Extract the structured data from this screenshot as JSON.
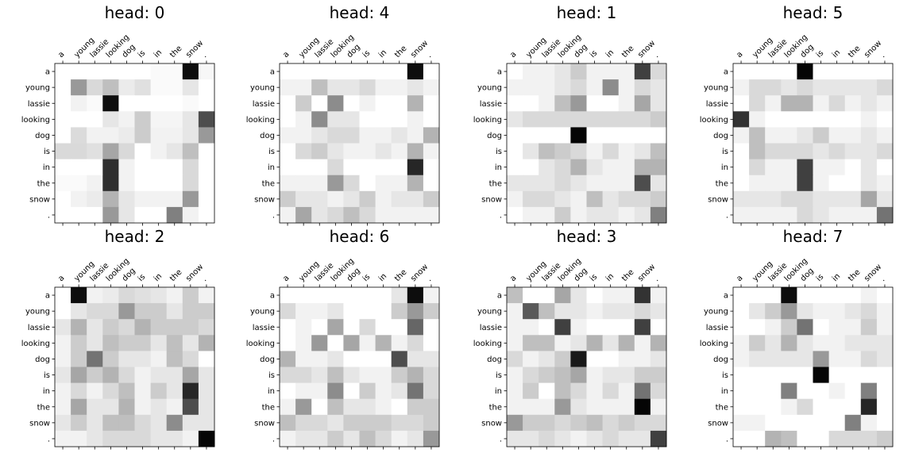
{
  "chart_data": [
    {
      "type": "heatmap",
      "title": "head: 0",
      "x_labels": [
        "a",
        "young",
        "lassie",
        "looking",
        "dog",
        "is",
        "in",
        "the",
        "snow",
        "."
      ],
      "y_labels": [
        "a",
        "young",
        "lassie",
        "looking",
        "dog",
        "is",
        "in",
        "the",
        "snow",
        "."
      ],
      "colormap": "greys",
      "values": [
        [
          0.0,
          0.0,
          0.0,
          0.0,
          0.0,
          0.0,
          0.02,
          0.02,
          0.95,
          0.03
        ],
        [
          0.0,
          0.4,
          0.15,
          0.25,
          0.08,
          0.12,
          0.02,
          0.02,
          0.1,
          0.0
        ],
        [
          0.0,
          0.05,
          0.02,
          0.95,
          0.0,
          0.0,
          0.0,
          0.0,
          0.02,
          0.0
        ],
        [
          0.0,
          0.0,
          0.0,
          0.1,
          0.05,
          0.2,
          0.04,
          0.04,
          0.1,
          0.7
        ],
        [
          0.0,
          0.14,
          0.05,
          0.05,
          0.08,
          0.2,
          0.05,
          0.05,
          0.1,
          0.4
        ],
        [
          0.15,
          0.15,
          0.12,
          0.35,
          0.15,
          0.0,
          0.05,
          0.1,
          0.25,
          0.0
        ],
        [
          0.0,
          0.0,
          0.0,
          0.82,
          0.05,
          0.0,
          0.0,
          0.0,
          0.15,
          0.0
        ],
        [
          0.02,
          0.02,
          0.05,
          0.82,
          0.05,
          0.0,
          0.0,
          0.0,
          0.15,
          0.0
        ],
        [
          0.0,
          0.05,
          0.08,
          0.3,
          0.1,
          0.05,
          0.05,
          0.05,
          0.4,
          0.0
        ],
        [
          0.0,
          0.0,
          0.0,
          0.4,
          0.1,
          0.0,
          0.0,
          0.5,
          0.05,
          0.0
        ]
      ]
    },
    {
      "type": "heatmap",
      "title": "head: 2",
      "x_labels": [
        "a",
        "young",
        "lassie",
        "looking",
        "dog",
        "is",
        "in",
        "the",
        "snow",
        "."
      ],
      "y_labels": [
        "a",
        "young",
        "lassie",
        "looking",
        "dog",
        "is",
        "in",
        "the",
        "snow",
        "."
      ],
      "colormap": "greys",
      "values": [
        [
          0.0,
          0.95,
          0.05,
          0.08,
          0.15,
          0.12,
          0.1,
          0.05,
          0.2,
          0.05
        ],
        [
          0.0,
          0.1,
          0.15,
          0.15,
          0.4,
          0.2,
          0.2,
          0.1,
          0.2,
          0.2
        ],
        [
          0.1,
          0.3,
          0.1,
          0.2,
          0.15,
          0.3,
          0.2,
          0.2,
          0.2,
          0.15
        ],
        [
          0.05,
          0.2,
          0.1,
          0.25,
          0.2,
          0.2,
          0.1,
          0.25,
          0.1,
          0.3
        ],
        [
          0.05,
          0.2,
          0.55,
          0.2,
          0.1,
          0.1,
          0.05,
          0.25,
          0.15,
          0.0
        ],
        [
          0.1,
          0.35,
          0.2,
          0.3,
          0.15,
          0.05,
          0.1,
          0.1,
          0.35,
          0.1
        ],
        [
          0.05,
          0.15,
          0.05,
          0.15,
          0.25,
          0.05,
          0.2,
          0.1,
          0.85,
          0.1
        ],
        [
          0.05,
          0.35,
          0.1,
          0.1,
          0.3,
          0.05,
          0.1,
          0.05,
          0.7,
          0.1
        ],
        [
          0.1,
          0.2,
          0.1,
          0.25,
          0.25,
          0.15,
          0.1,
          0.45,
          0.1,
          0.1
        ],
        [
          0.05,
          0.05,
          0.1,
          0.15,
          0.15,
          0.15,
          0.1,
          0.1,
          0.05,
          0.98
        ]
      ]
    },
    {
      "type": "heatmap",
      "title": "head: 4",
      "x_labels": [
        "a",
        "young",
        "lassie",
        "looking",
        "dog",
        "is",
        "in",
        "the",
        "snow",
        "."
      ],
      "y_labels": [
        "a",
        "young",
        "lassie",
        "looking",
        "dog",
        "is",
        "in",
        "the",
        "snow",
        "."
      ],
      "colormap": "greys",
      "values": [
        [
          0.0,
          0.0,
          0.0,
          0.0,
          0.0,
          0.0,
          0.0,
          0.0,
          0.95,
          0.0
        ],
        [
          0.05,
          0.05,
          0.25,
          0.1,
          0.1,
          0.15,
          0.05,
          0.05,
          0.1,
          0.05
        ],
        [
          0.0,
          0.2,
          0.0,
          0.45,
          0.0,
          0.05,
          0.0,
          0.0,
          0.3,
          0.0
        ],
        [
          0.0,
          0.05,
          0.45,
          0.1,
          0.1,
          0.0,
          0.0,
          0.0,
          0.05,
          0.0
        ],
        [
          0.05,
          0.05,
          0.1,
          0.15,
          0.15,
          0.05,
          0.05,
          0.1,
          0.05,
          0.3
        ],
        [
          0.0,
          0.15,
          0.2,
          0.1,
          0.05,
          0.05,
          0.1,
          0.05,
          0.3,
          0.05
        ],
        [
          0.0,
          0.0,
          0.0,
          0.15,
          0.0,
          0.0,
          0.0,
          0.0,
          0.85,
          0.0
        ],
        [
          0.05,
          0.05,
          0.05,
          0.4,
          0.15,
          0.0,
          0.05,
          0.05,
          0.3,
          0.0
        ],
        [
          0.2,
          0.1,
          0.1,
          0.05,
          0.1,
          0.2,
          0.05,
          0.1,
          0.1,
          0.2
        ],
        [
          0.05,
          0.35,
          0.1,
          0.15,
          0.25,
          0.15,
          0.05,
          0.05,
          0.05,
          0.05
        ]
      ]
    },
    {
      "type": "heatmap",
      "title": "head: 6",
      "x_labels": [
        "a",
        "young",
        "lassie",
        "looking",
        "dog",
        "is",
        "in",
        "the",
        "snow",
        "."
      ],
      "y_labels": [
        "a",
        "young",
        "lassie",
        "looking",
        "dog",
        "is",
        "in",
        "the",
        "snow",
        "."
      ],
      "colormap": "greys",
      "values": [
        [
          0.0,
          0.0,
          0.0,
          0.0,
          0.0,
          0.0,
          0.0,
          0.1,
          0.95,
          0.05
        ],
        [
          0.15,
          0.05,
          0.05,
          0.1,
          0.0,
          0.0,
          0.0,
          0.2,
          0.4,
          0.2
        ],
        [
          0.0,
          0.05,
          0.0,
          0.35,
          0.0,
          0.15,
          0.0,
          0.0,
          0.6,
          0.0
        ],
        [
          0.0,
          0.05,
          0.4,
          0.0,
          0.35,
          0.05,
          0.3,
          0.05,
          0.15,
          0.0
        ],
        [
          0.3,
          0.05,
          0.05,
          0.1,
          0.0,
          0.0,
          0.0,
          0.7,
          0.1,
          0.1
        ],
        [
          0.15,
          0.15,
          0.1,
          0.25,
          0.1,
          0.05,
          0.05,
          0.2,
          0.3,
          0.15
        ],
        [
          0.0,
          0.05,
          0.05,
          0.45,
          0.0,
          0.2,
          0.05,
          0.1,
          0.55,
          0.15
        ],
        [
          0.05,
          0.4,
          0.0,
          0.25,
          0.1,
          0.1,
          0.05,
          0.0,
          0.2,
          0.2
        ],
        [
          0.25,
          0.15,
          0.15,
          0.1,
          0.2,
          0.2,
          0.2,
          0.15,
          0.15,
          0.2
        ],
        [
          0.05,
          0.1,
          0.1,
          0.2,
          0.1,
          0.25,
          0.15,
          0.05,
          0.1,
          0.4
        ]
      ]
    },
    {
      "type": "heatmap",
      "title": "head: 1",
      "x_labels": [
        "a",
        "young",
        "lassie",
        "looking",
        "dog",
        "is",
        "in",
        "the",
        "snow",
        "."
      ],
      "y_labels": [
        "a",
        "young",
        "lassie",
        "looking",
        "dog",
        "is",
        "in",
        "the",
        "snow",
        "."
      ],
      "colormap": "greys",
      "values": [
        [
          0.0,
          0.05,
          0.05,
          0.1,
          0.2,
          0.05,
          0.05,
          0.05,
          0.75,
          0.15
        ],
        [
          0.05,
          0.05,
          0.05,
          0.1,
          0.15,
          0.05,
          0.45,
          0.05,
          0.15,
          0.1
        ],
        [
          0.0,
          0.0,
          0.05,
          0.25,
          0.4,
          0.0,
          0.0,
          0.05,
          0.35,
          0.1
        ],
        [
          0.1,
          0.15,
          0.15,
          0.15,
          0.15,
          0.15,
          0.15,
          0.15,
          0.15,
          0.2
        ],
        [
          0.0,
          0.0,
          0.0,
          0.0,
          0.98,
          0.0,
          0.0,
          0.0,
          0.0,
          0.0
        ],
        [
          0.0,
          0.1,
          0.25,
          0.2,
          0.15,
          0.05,
          0.15,
          0.05,
          0.1,
          0.25
        ],
        [
          0.0,
          0.0,
          0.1,
          0.15,
          0.3,
          0.1,
          0.05,
          0.05,
          0.3,
          0.3
        ],
        [
          0.1,
          0.1,
          0.1,
          0.15,
          0.1,
          0.05,
          0.05,
          0.05,
          0.7,
          0.1
        ],
        [
          0.05,
          0.15,
          0.15,
          0.1,
          0.05,
          0.25,
          0.1,
          0.15,
          0.15,
          0.2
        ],
        [
          0.0,
          0.05,
          0.05,
          0.2,
          0.05,
          0.1,
          0.1,
          0.05,
          0.1,
          0.5
        ]
      ]
    },
    {
      "type": "heatmap",
      "title": "head: 3",
      "x_labels": [
        "a",
        "young",
        "lassie",
        "looking",
        "dog",
        "is",
        "in",
        "the",
        "snow",
        "."
      ],
      "y_labels": [
        "a",
        "young",
        "lassie",
        "looking",
        "dog",
        "is",
        "in",
        "the",
        "snow",
        "."
      ],
      "colormap": "greys",
      "values": [
        [
          0.25,
          0.0,
          0.0,
          0.35,
          0.1,
          0.0,
          0.05,
          0.05,
          0.8,
          0.05
        ],
        [
          0.05,
          0.65,
          0.25,
          0.1,
          0.1,
          0.05,
          0.1,
          0.1,
          0.15,
          0.1
        ],
        [
          0.05,
          0.05,
          0.0,
          0.75,
          0.05,
          0.0,
          0.0,
          0.0,
          0.75,
          0.0
        ],
        [
          0.05,
          0.25,
          0.25,
          0.05,
          0.1,
          0.3,
          0.1,
          0.3,
          0.05,
          0.3
        ],
        [
          0.15,
          0.05,
          0.1,
          0.2,
          0.9,
          0.0,
          0.0,
          0.05,
          0.05,
          0.1
        ],
        [
          0.05,
          0.15,
          0.2,
          0.25,
          0.35,
          0.05,
          0.1,
          0.1,
          0.2,
          0.2
        ],
        [
          0.05,
          0.2,
          0.0,
          0.25,
          0.15,
          0.05,
          0.15,
          0.05,
          0.55,
          0.15
        ],
        [
          0.05,
          0.05,
          0.05,
          0.4,
          0.1,
          0.05,
          0.05,
          0.05,
          0.98,
          0.05
        ],
        [
          0.4,
          0.2,
          0.2,
          0.15,
          0.2,
          0.25,
          0.15,
          0.2,
          0.15,
          0.15
        ],
        [
          0.1,
          0.1,
          0.15,
          0.1,
          0.05,
          0.1,
          0.15,
          0.1,
          0.1,
          0.75
        ]
      ]
    },
    {
      "type": "heatmap",
      "title": "head: 5",
      "x_labels": [
        "a",
        "young",
        "lassie",
        "looking",
        "dog",
        "is",
        "in",
        "the",
        "snow",
        "."
      ],
      "y_labels": [
        "a",
        "young",
        "lassie",
        "looking",
        "dog",
        "is",
        "in",
        "the",
        "snow",
        "."
      ],
      "colormap": "greys",
      "values": [
        [
          0.0,
          0.0,
          0.0,
          0.0,
          0.98,
          0.0,
          0.0,
          0.0,
          0.0,
          0.0
        ],
        [
          0.05,
          0.15,
          0.15,
          0.1,
          0.15,
          0.1,
          0.1,
          0.1,
          0.1,
          0.15
        ],
        [
          0.0,
          0.15,
          0.05,
          0.3,
          0.3,
          0.05,
          0.15,
          0.05,
          0.1,
          0.05
        ],
        [
          0.8,
          0.05,
          0.0,
          0.0,
          0.0,
          0.0,
          0.0,
          0.0,
          0.05,
          0.0
        ],
        [
          0.05,
          0.25,
          0.05,
          0.05,
          0.1,
          0.2,
          0.05,
          0.05,
          0.1,
          0.05
        ],
        [
          0.0,
          0.25,
          0.15,
          0.15,
          0.15,
          0.1,
          0.15,
          0.1,
          0.1,
          0.15
        ],
        [
          0.0,
          0.15,
          0.05,
          0.05,
          0.75,
          0.05,
          0.05,
          0.0,
          0.1,
          0.0
        ],
        [
          0.0,
          0.05,
          0.05,
          0.05,
          0.75,
          0.05,
          0.0,
          0.0,
          0.1,
          0.05
        ],
        [
          0.1,
          0.1,
          0.1,
          0.15,
          0.15,
          0.1,
          0.1,
          0.1,
          0.35,
          0.1
        ],
        [
          0.05,
          0.05,
          0.05,
          0.05,
          0.15,
          0.1,
          0.05,
          0.05,
          0.05,
          0.55
        ]
      ]
    },
    {
      "type": "heatmap",
      "title": "head: 7",
      "x_labels": [
        "a",
        "young",
        "lassie",
        "looking",
        "dog",
        "is",
        "in",
        "the",
        "snow",
        "."
      ],
      "y_labels": [
        "a",
        "young",
        "lassie",
        "looking",
        "dog",
        "is",
        "in",
        "the",
        "snow",
        "."
      ],
      "colormap": "greys",
      "values": [
        [
          0.0,
          0.0,
          0.0,
          0.95,
          0.0,
          0.0,
          0.0,
          0.0,
          0.05,
          0.0
        ],
        [
          0.0,
          0.1,
          0.2,
          0.4,
          0.1,
          0.05,
          0.05,
          0.1,
          0.15,
          0.05
        ],
        [
          0.0,
          0.0,
          0.05,
          0.2,
          0.55,
          0.0,
          0.05,
          0.05,
          0.2,
          0.05
        ],
        [
          0.05,
          0.2,
          0.1,
          0.3,
          0.1,
          0.05,
          0.05,
          0.1,
          0.1,
          0.1
        ],
        [
          0.05,
          0.1,
          0.1,
          0.1,
          0.1,
          0.4,
          0.05,
          0.05,
          0.15,
          0.1
        ],
        [
          0.0,
          0.0,
          0.0,
          0.0,
          0.0,
          0.98,
          0.0,
          0.0,
          0.0,
          0.0
        ],
        [
          0.0,
          0.0,
          0.0,
          0.5,
          0.0,
          0.0,
          0.05,
          0.0,
          0.5,
          0.0
        ],
        [
          0.0,
          0.0,
          0.0,
          0.05,
          0.15,
          0.0,
          0.0,
          0.0,
          0.85,
          0.0
        ],
        [
          0.05,
          0.05,
          0.0,
          0.0,
          0.0,
          0.0,
          0.0,
          0.5,
          0.05,
          0.0
        ],
        [
          0.0,
          0.0,
          0.3,
          0.25,
          0.0,
          0.0,
          0.15,
          0.15,
          0.15,
          0.2
        ]
      ]
    }
  ]
}
